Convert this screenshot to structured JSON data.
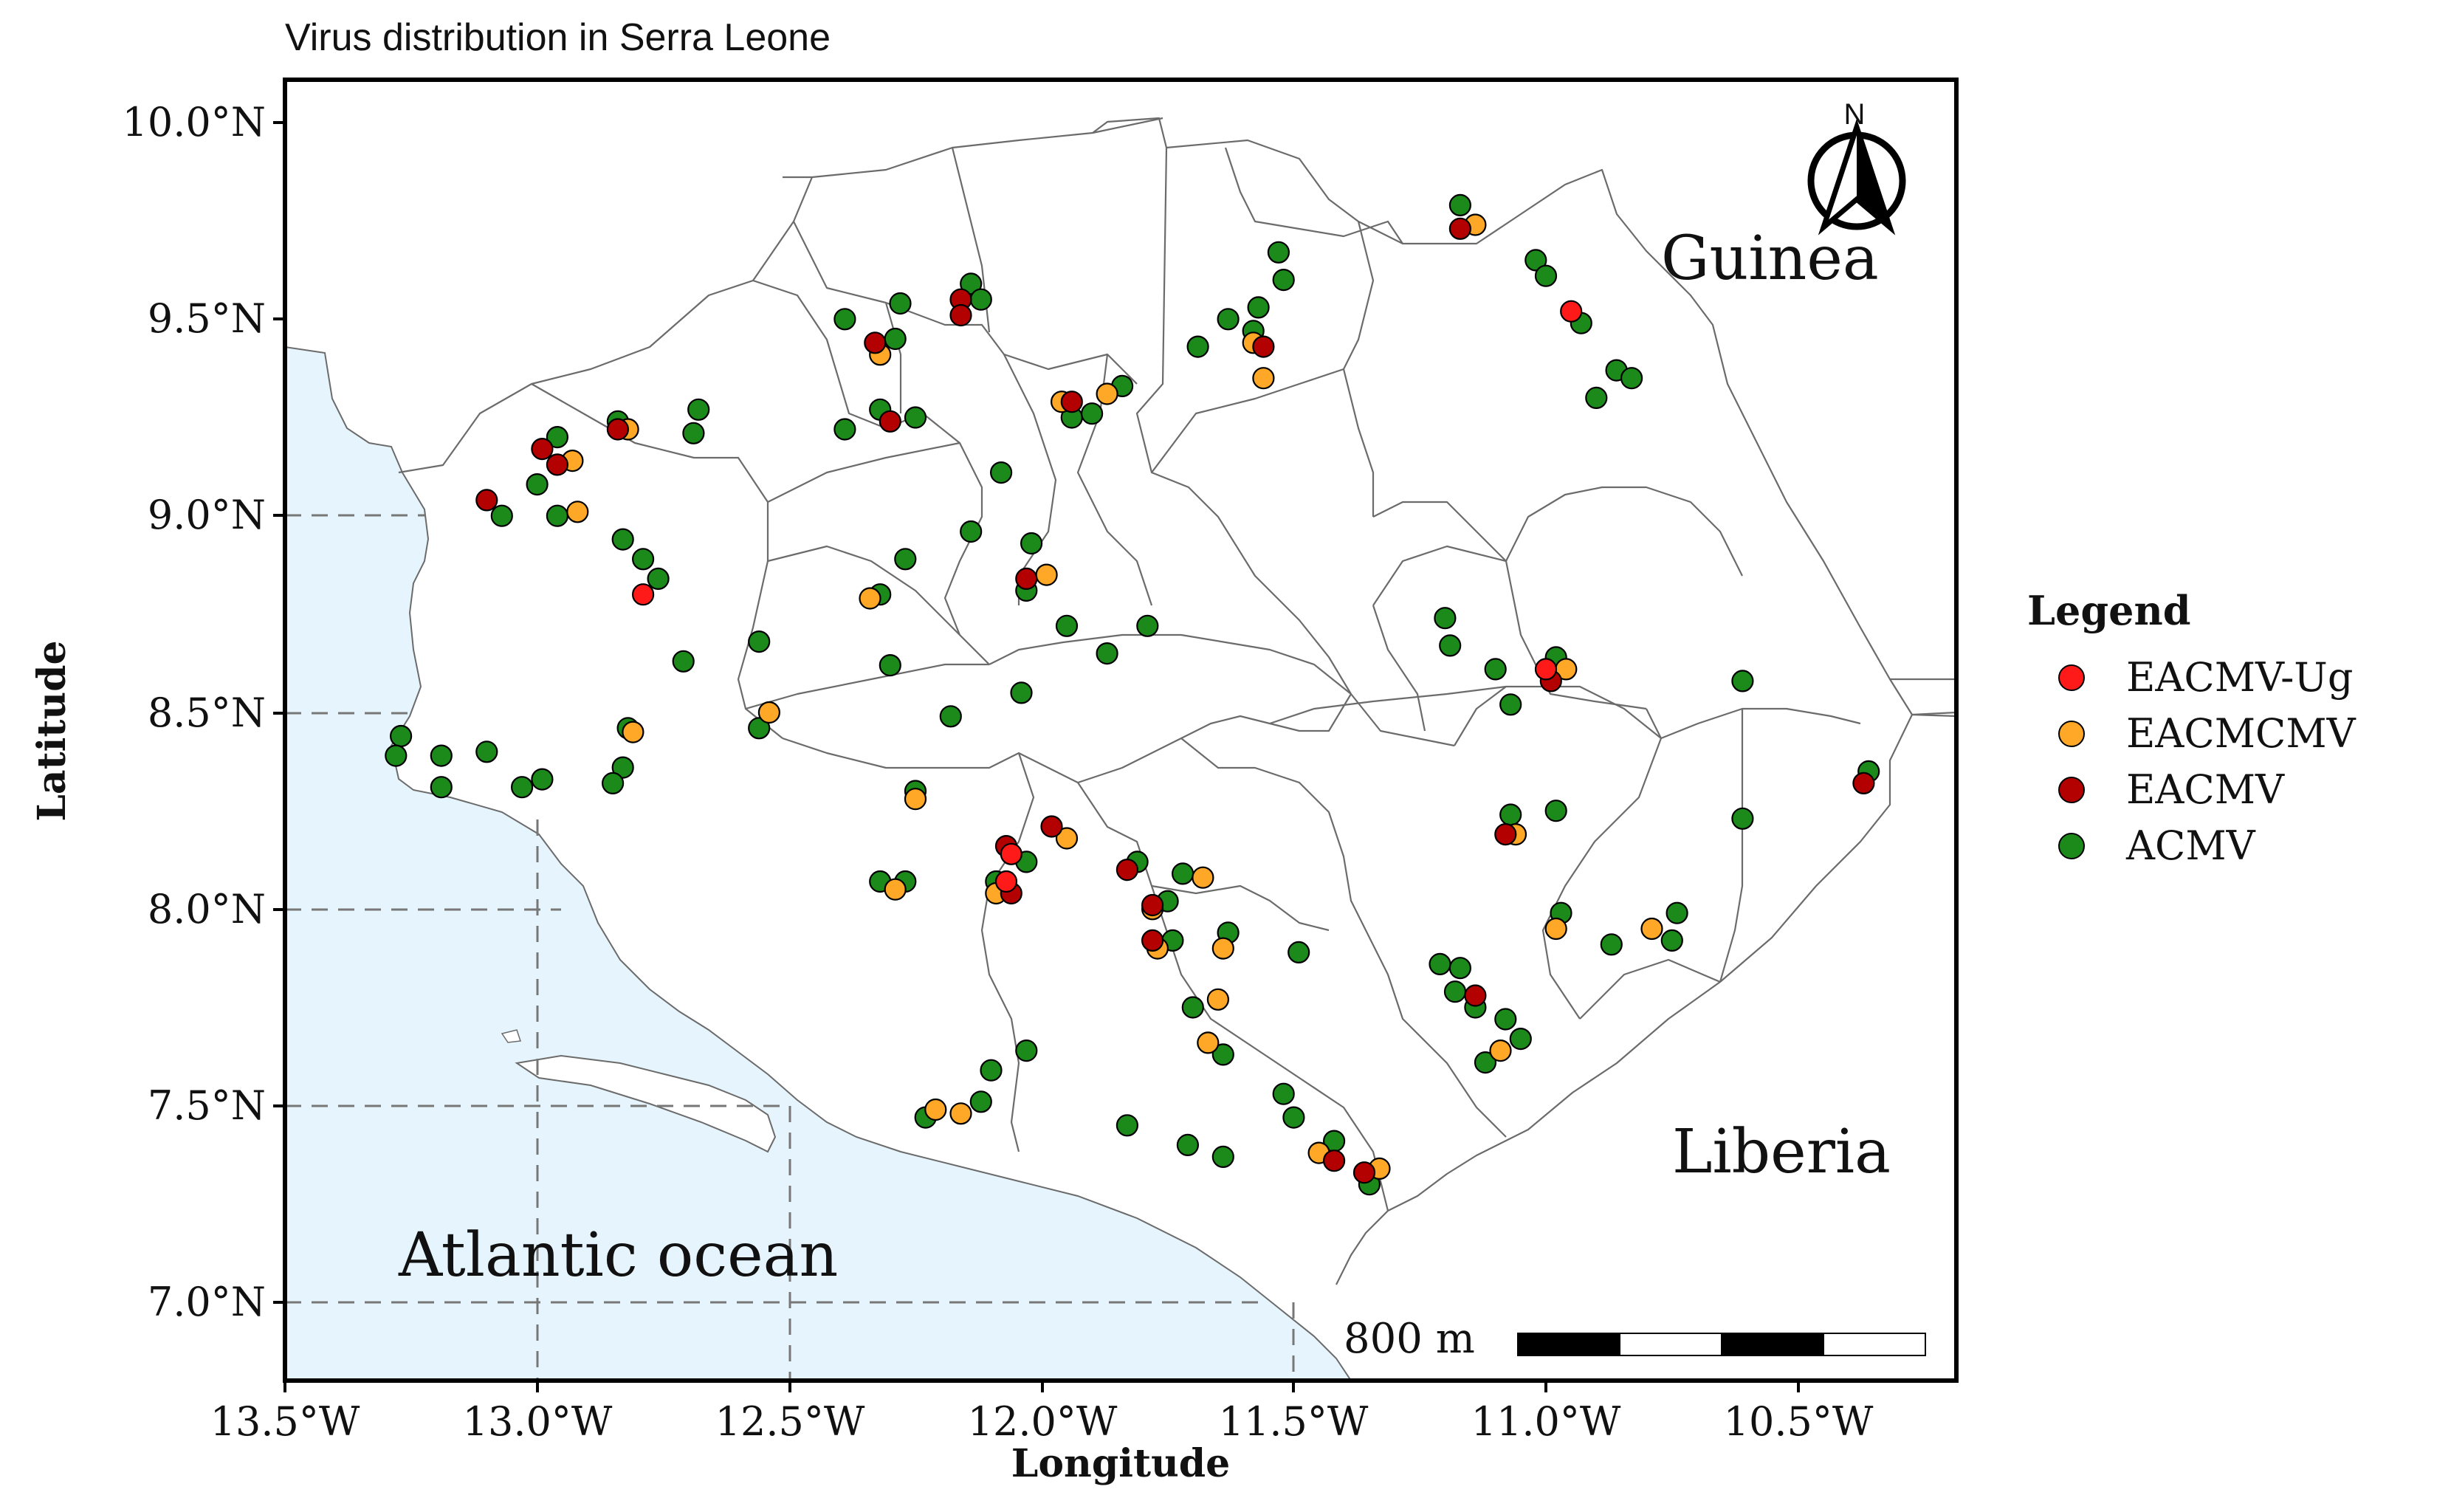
{
  "title": "Virus distribution in Serra Leone",
  "axes": {
    "xlabel": "Longitude",
    "ylabel": "Latitude",
    "x_ticks": [
      "13.5°W",
      "13.0°W",
      "12.5°W",
      "12.0°W",
      "11.5°W",
      "11.0°W",
      "10.5°W"
    ],
    "y_ticks": [
      "10.0°N",
      "9.5°N",
      "9.0°N",
      "8.5°N",
      "8.0°N",
      "7.5°N",
      "7.0°N"
    ]
  },
  "place_labels": {
    "guinea": "Guinea",
    "liberia": "Liberia",
    "ocean": "Atlantic ocean"
  },
  "north_arrow": {
    "label": "N"
  },
  "scale_bar": {
    "label": "800 m"
  },
  "legend": {
    "title": "Legend",
    "items": [
      {
        "label": "EACMV-Ug",
        "color": "#ff1a1a"
      },
      {
        "label": "EACMCMV",
        "color": "#ffa726"
      },
      {
        "label": "EACMV",
        "color": "#b30000"
      },
      {
        "label": "ACMV",
        "color": "#1b8a1b"
      }
    ]
  },
  "colors": {
    "ocean": "#e6f4fd",
    "land": "#ffffff",
    "boundary": "#6b6b6b",
    "gridline": "#777777"
  },
  "chart_data": {
    "type": "scatter",
    "title": "Virus distribution in Serra Leone",
    "xlabel": "Longitude",
    "ylabel": "Latitude",
    "xlim": [
      -13.5,
      -10.25
    ],
    "ylim": [
      6.8,
      10.2
    ],
    "dashed_guides": [
      [
        -13.0,
        7.0
      ],
      [
        -12.5,
        7.5
      ],
      [
        -13.0,
        8.0
      ],
      [
        -11.5,
        7.0
      ]
    ],
    "series": [
      {
        "name": "EACMV-Ug",
        "color": "#ff1a1a",
        "points": [
          [
            -12.79,
            8.8
          ],
          [
            -10.95,
            9.52
          ],
          [
            -11.0,
            8.61
          ],
          [
            -12.06,
            8.14
          ],
          [
            -12.07,
            8.07
          ]
        ]
      },
      {
        "name": "EACMCMV",
        "color": "#ffa726",
        "points": [
          [
            -12.32,
            9.41
          ],
          [
            -12.93,
            9.14
          ],
          [
            -12.82,
            9.22
          ],
          [
            -12.92,
            9.01
          ],
          [
            -11.58,
            9.44
          ],
          [
            -11.56,
            9.35
          ],
          [
            -11.96,
            9.29
          ],
          [
            -11.87,
            9.31
          ],
          [
            -11.99,
            8.85
          ],
          [
            -12.34,
            8.79
          ],
          [
            -12.54,
            8.5
          ],
          [
            -12.81,
            8.45
          ],
          [
            -12.25,
            8.28
          ],
          [
            -12.29,
            8.05
          ],
          [
            -12.09,
            8.04
          ],
          [
            -11.95,
            8.18
          ],
          [
            -11.68,
            8.08
          ],
          [
            -11.78,
            8.0
          ],
          [
            -11.77,
            7.9
          ],
          [
            -11.64,
            7.9
          ],
          [
            -11.65,
            7.77
          ],
          [
            -11.67,
            7.66
          ],
          [
            -11.45,
            7.38
          ],
          [
            -11.33,
            7.34
          ],
          [
            -12.21,
            7.49
          ],
          [
            -12.16,
            7.48
          ],
          [
            -11.14,
            9.74
          ],
          [
            -10.96,
            8.61
          ],
          [
            -11.06,
            8.19
          ],
          [
            -10.98,
            7.95
          ],
          [
            -10.79,
            7.95
          ],
          [
            -11.09,
            7.64
          ]
        ]
      },
      {
        "name": "EACMV",
        "color": "#b30000",
        "points": [
          [
            -12.33,
            9.44
          ],
          [
            -12.3,
            9.24
          ],
          [
            -12.16,
            9.55
          ],
          [
            -12.16,
            9.51
          ],
          [
            -11.56,
            9.43
          ],
          [
            -11.94,
            9.29
          ],
          [
            -12.99,
            9.17
          ],
          [
            -12.96,
            9.13
          ],
          [
            -12.84,
            9.22
          ],
          [
            -13.1,
            9.04
          ],
          [
            -12.03,
            8.84
          ],
          [
            -12.07,
            8.16
          ],
          [
            -11.98,
            8.21
          ],
          [
            -12.06,
            8.04
          ],
          [
            -11.83,
            8.1
          ],
          [
            -11.78,
            8.01
          ],
          [
            -11.78,
            7.92
          ],
          [
            -11.42,
            7.36
          ],
          [
            -11.36,
            7.33
          ],
          [
            -11.17,
            9.73
          ],
          [
            -10.99,
            8.58
          ],
          [
            -11.08,
            8.19
          ],
          [
            -11.14,
            7.78
          ],
          [
            -10.37,
            8.32
          ]
        ]
      },
      {
        "name": "ACMV",
        "color": "#1b8a1b",
        "points": [
          [
            -12.39,
            9.5
          ],
          [
            -12.28,
            9.54
          ],
          [
            -12.29,
            9.45
          ],
          [
            -12.32,
            9.27
          ],
          [
            -12.39,
            9.22
          ],
          [
            -12.25,
            9.25
          ],
          [
            -12.14,
            9.59
          ],
          [
            -12.12,
            9.55
          ],
          [
            -11.94,
            9.25
          ],
          [
            -11.9,
            9.26
          ],
          [
            -11.84,
            9.33
          ],
          [
            -11.53,
            9.67
          ],
          [
            -11.52,
            9.6
          ],
          [
            -11.63,
            9.5
          ],
          [
            -11.69,
            9.43
          ],
          [
            -11.57,
            9.53
          ],
          [
            -11.58,
            9.47
          ],
          [
            -12.68,
            9.27
          ],
          [
            -12.69,
            9.21
          ],
          [
            -12.84,
            9.24
          ],
          [
            -12.96,
            9.2
          ],
          [
            -13.0,
            9.08
          ],
          [
            -12.96,
            9.0
          ],
          [
            -13.07,
            9.0
          ],
          [
            -12.83,
            8.94
          ],
          [
            -12.79,
            8.89
          ],
          [
            -12.76,
            8.84
          ],
          [
            -12.71,
            8.63
          ],
          [
            -12.56,
            8.68
          ],
          [
            -12.56,
            8.46
          ],
          [
            -12.82,
            8.46
          ],
          [
            -12.83,
            8.36
          ],
          [
            -12.85,
            8.32
          ],
          [
            -13.27,
            8.44
          ],
          [
            -13.28,
            8.39
          ],
          [
            -13.19,
            8.39
          ],
          [
            -13.1,
            8.4
          ],
          [
            -13.19,
            8.31
          ],
          [
            -13.03,
            8.31
          ],
          [
            -12.99,
            8.33
          ],
          [
            -12.08,
            9.11
          ],
          [
            -12.14,
            8.96
          ],
          [
            -12.02,
            8.93
          ],
          [
            -12.03,
            8.81
          ],
          [
            -12.27,
            8.89
          ],
          [
            -12.32,
            8.8
          ],
          [
            -12.3,
            8.62
          ],
          [
            -12.18,
            8.49
          ],
          [
            -12.04,
            8.55
          ],
          [
            -11.95,
            8.72
          ],
          [
            -11.87,
            8.65
          ],
          [
            -11.79,
            8.72
          ],
          [
            -12.25,
            8.3
          ],
          [
            -12.32,
            8.07
          ],
          [
            -12.27,
            8.07
          ],
          [
            -12.09,
            8.07
          ],
          [
            -12.03,
            8.12
          ],
          [
            -11.81,
            8.12
          ],
          [
            -11.75,
            8.02
          ],
          [
            -11.72,
            8.09
          ],
          [
            -11.74,
            7.92
          ],
          [
            -11.63,
            7.94
          ],
          [
            -11.7,
            7.75
          ],
          [
            -11.64,
            7.63
          ],
          [
            -11.52,
            7.53
          ],
          [
            -11.5,
            7.47
          ],
          [
            -11.49,
            7.89
          ],
          [
            -11.42,
            7.41
          ],
          [
            -11.35,
            7.3
          ],
          [
            -11.71,
            7.4
          ],
          [
            -11.64,
            7.37
          ],
          [
            -11.83,
            7.45
          ],
          [
            -12.03,
            7.64
          ],
          [
            -12.1,
            7.59
          ],
          [
            -12.12,
            7.51
          ],
          [
            -12.23,
            7.47
          ],
          [
            -11.2,
            8.74
          ],
          [
            -11.19,
            8.67
          ],
          [
            -11.1,
            8.61
          ],
          [
            -11.07,
            8.52
          ],
          [
            -10.98,
            8.64
          ],
          [
            -11.07,
            8.24
          ],
          [
            -10.98,
            8.25
          ],
          [
            -10.97,
            7.99
          ],
          [
            -10.87,
            7.91
          ],
          [
            -10.74,
            7.99
          ],
          [
            -10.75,
            7.92
          ],
          [
            -10.61,
            8.58
          ],
          [
            -10.61,
            8.23
          ],
          [
            -10.36,
            8.35
          ],
          [
            -11.21,
            7.86
          ],
          [
            -11.17,
            7.85
          ],
          [
            -11.18,
            7.79
          ],
          [
            -11.14,
            7.75
          ],
          [
            -11.08,
            7.72
          ],
          [
            -11.05,
            7.67
          ],
          [
            -11.12,
            7.61
          ],
          [
            -11.17,
            9.79
          ],
          [
            -11.02,
            9.65
          ],
          [
            -11.0,
            9.61
          ],
          [
            -10.93,
            9.49
          ],
          [
            -10.9,
            9.3
          ],
          [
            -10.86,
            9.37
          ],
          [
            -10.83,
            9.35
          ]
        ]
      }
    ]
  }
}
